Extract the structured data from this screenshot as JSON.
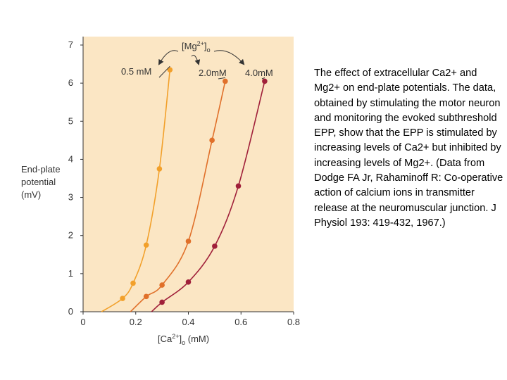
{
  "caption": "The effect of extracellular Ca2+ and Mg2+ on end-plate potentials. The data, obtained by stimulating the motor neuron and monitoring the evoked subthreshold EPP, show that the EPP is stimulated by increasing levels of Ca2+ but inhibited by increasing levels of Mg2+. (Data from Dodge FA Jr, Rahaminoff R: Co-operative action of calcium ions in transmitter release at the neuromuscular junction. J Physiol 193: 419-432, 1967.)",
  "colors": {
    "plot_background": "#fbe6c4",
    "axis": "#333333",
    "series_0_5": "#f2a02a",
    "series_2_0": "#e0702a",
    "series_4_0": "#a0203a"
  },
  "chart_data": {
    "type": "line",
    "ylabel_lines": [
      "End-plate",
      "potential",
      "(mV)"
    ],
    "xlabel": {
      "prefix": "[Ca",
      "sup": "2+",
      "sub": "o",
      "suffix": " (mM)"
    },
    "legend_title": {
      "prefix": "[Mg",
      "sup": "2+",
      "sub": "o"
    },
    "xlim": [
      0,
      0.8
    ],
    "ylim": [
      0,
      7
    ],
    "xticks": [
      "0",
      "0.2",
      "0.4",
      "0.6",
      "0.8"
    ],
    "yticks": [
      "0",
      "1",
      "2",
      "3",
      "4",
      "5",
      "6",
      "7"
    ],
    "grid": false,
    "series": [
      {
        "name": "0.5 mM",
        "points": [
          [
            0.15,
            0.35
          ],
          [
            0.19,
            0.75
          ],
          [
            0.24,
            1.75
          ],
          [
            0.29,
            3.75
          ],
          [
            0.33,
            6.35
          ]
        ],
        "curve": [
          [
            0.07,
            0.0
          ],
          [
            0.15,
            0.35
          ],
          [
            0.19,
            0.75
          ],
          [
            0.24,
            1.75
          ],
          [
            0.29,
            3.75
          ],
          [
            0.33,
            6.35
          ]
        ]
      },
      {
        "name": "2.0mM",
        "points": [
          [
            0.24,
            0.4
          ],
          [
            0.3,
            0.7
          ],
          [
            0.4,
            1.85
          ],
          [
            0.49,
            4.5
          ],
          [
            0.54,
            6.05
          ]
        ],
        "curve": [
          [
            0.18,
            0.0
          ],
          [
            0.24,
            0.4
          ],
          [
            0.3,
            0.7
          ],
          [
            0.4,
            1.85
          ],
          [
            0.49,
            4.5
          ],
          [
            0.54,
            6.05
          ]
        ]
      },
      {
        "name": "4.0mM",
        "points": [
          [
            0.3,
            0.25
          ],
          [
            0.4,
            0.78
          ],
          [
            0.5,
            1.72
          ],
          [
            0.59,
            3.3
          ],
          [
            0.69,
            6.05
          ]
        ],
        "curve": [
          [
            0.26,
            0.0
          ],
          [
            0.3,
            0.25
          ],
          [
            0.4,
            0.78
          ],
          [
            0.5,
            1.72
          ],
          [
            0.59,
            3.3
          ],
          [
            0.69,
            6.05
          ]
        ]
      }
    ]
  }
}
